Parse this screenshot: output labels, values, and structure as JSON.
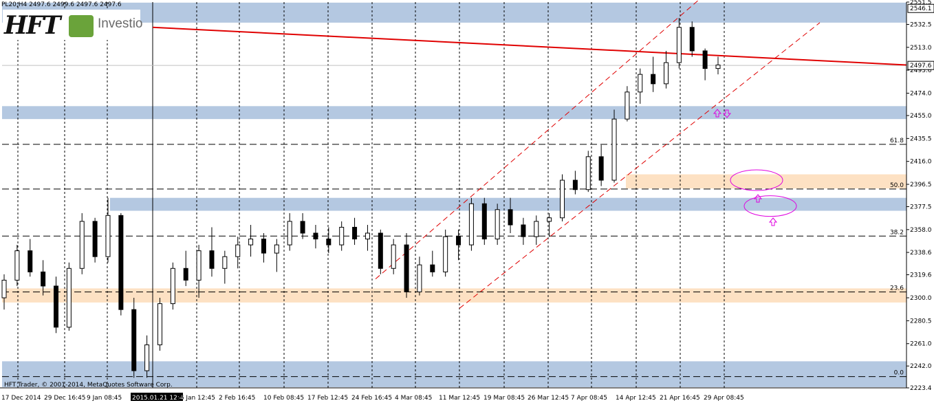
{
  "header": {
    "symbol_info": "PL20,H4  2497.6 2499.6 2497.6 2497.6"
  },
  "logo": {
    "brand": "HFT",
    "suffix": "Investio"
  },
  "footer": {
    "copyright": "HFT Trader, © 2001-2014, MetaQuotes Software Corp."
  },
  "colors": {
    "candle": "#000000",
    "trendline": "#e00000",
    "channel": "#e00000",
    "blue_zone": "#b4c8e1",
    "orange_zone": "#fde1c3",
    "ellipse": "#e000e0",
    "grid": "#000000"
  },
  "chart_data": {
    "type": "candlestick",
    "instrument": "PL20",
    "timeframe": "H4",
    "current_price": 2497.6,
    "top_label": 2546.1,
    "ylim": [
      2223.4,
      2551.5
    ],
    "y_ticks": [
      2551.5,
      2532.5,
      2513.0,
      2493.6,
      2474.0,
      2455.0,
      2435.5,
      2416.0,
      2396.5,
      2377.5,
      2358.0,
      2338.6,
      2319.6,
      2300.0,
      2280.5,
      2261.0,
      2242.0,
      2223.4
    ],
    "x_ticks": [
      "17 Dec 2014",
      "29 Dec 16:45",
      "9 Jan 08:45",
      "2015.01.21 12:45",
      "26 Jan 12:45",
      "2 Feb 16:45",
      "10 Feb 08:45",
      "17 Feb 12:45",
      "24 Feb 16:45",
      "4 Mar 08:45",
      "11 Mar 12:45",
      "19 Mar 08:45",
      "26 Mar 12:45",
      "7 Apr 08:45",
      "14 Apr 12:45",
      "21 Apr 16:45",
      "29 Apr 08:45"
    ],
    "fib_levels": [
      {
        "label": "61.8",
        "price": 2430.5
      },
      {
        "label": "50.0",
        "price": 2392.5
      },
      {
        "label": "38.2",
        "price": 2352.5
      },
      {
        "label": "23.6",
        "price": 2305.0
      },
      {
        "label": "0.0",
        "price": 2233.0
      }
    ],
    "zones": [
      {
        "color": "blue",
        "from": 2534,
        "to": 2551
      },
      {
        "color": "blue",
        "from": 2452,
        "to": 2463
      },
      {
        "color": "orange",
        "from": 2393,
        "to": 2405
      },
      {
        "color": "blue",
        "from": 2374,
        "to": 2385
      },
      {
        "color": "orange",
        "from": 2296,
        "to": 2308
      },
      {
        "color": "blue",
        "from": 2224,
        "to": 2246
      }
    ],
    "trendline": {
      "from": [
        "2015.01.21 12:45",
        2530
      ],
      "to": [
        "end",
        2498
      ]
    },
    "channel_upper": {
      "from": [
        "4 Mar 08:45",
        2316
      ],
      "to": [
        "24 Apr",
        2568
      ]
    },
    "channel_lower": {
      "from": [
        "11 Mar 12:45",
        2291
      ],
      "to": [
        "3 May",
        2534
      ]
    },
    "candles": [
      [
        2300,
        2320,
        2290,
        2315
      ],
      [
        2315,
        2345,
        2310,
        2340
      ],
      [
        2340,
        2350,
        2318,
        2322
      ],
      [
        2322,
        2332,
        2302,
        2310
      ],
      [
        2310,
        2318,
        2270,
        2275
      ],
      [
        2275,
        2330,
        2272,
        2325
      ],
      [
        2325,
        2372,
        2320,
        2365
      ],
      [
        2365,
        2368,
        2330,
        2335
      ],
      [
        2335,
        2385,
        2330,
        2370
      ],
      [
        2370,
        2372,
        2285,
        2290
      ],
      [
        2290,
        2300,
        2232,
        2238
      ],
      [
        2238,
        2268,
        2232,
        2260
      ],
      [
        2260,
        2300,
        2255,
        2295
      ],
      [
        2295,
        2330,
        2290,
        2325
      ],
      [
        2325,
        2340,
        2310,
        2315
      ],
      [
        2315,
        2345,
        2300,
        2340
      ],
      [
        2340,
        2360,
        2318,
        2325
      ],
      [
        2325,
        2340,
        2312,
        2335
      ],
      [
        2335,
        2352,
        2325,
        2345
      ],
      [
        2345,
        2362,
        2335,
        2350
      ],
      [
        2350,
        2355,
        2330,
        2338
      ],
      [
        2338,
        2350,
        2322,
        2345
      ],
      [
        2345,
        2372,
        2340,
        2365
      ],
      [
        2365,
        2372,
        2350,
        2355
      ],
      [
        2355,
        2362,
        2342,
        2350
      ],
      [
        2350,
        2360,
        2338,
        2345
      ],
      [
        2345,
        2365,
        2340,
        2360
      ],
      [
        2360,
        2368,
        2345,
        2350
      ],
      [
        2350,
        2362,
        2340,
        2355
      ],
      [
        2355,
        2358,
        2320,
        2325
      ],
      [
        2325,
        2350,
        2320,
        2345
      ],
      [
        2345,
        2355,
        2300,
        2305
      ],
      [
        2305,
        2335,
        2302,
        2328
      ],
      [
        2328,
        2340,
        2318,
        2322
      ],
      [
        2322,
        2358,
        2318,
        2352
      ],
      [
        2352,
        2358,
        2332,
        2345
      ],
      [
        2345,
        2385,
        2340,
        2380
      ],
      [
        2380,
        2385,
        2345,
        2350
      ],
      [
        2350,
        2380,
        2345,
        2375
      ],
      [
        2375,
        2385,
        2355,
        2362
      ],
      [
        2362,
        2368,
        2345,
        2352
      ],
      [
        2352,
        2370,
        2345,
        2365
      ],
      [
        2365,
        2372,
        2352,
        2368
      ],
      [
        2368,
        2405,
        2365,
        2400
      ],
      [
        2400,
        2408,
        2388,
        2392
      ],
      [
        2392,
        2425,
        2390,
        2420
      ],
      [
        2420,
        2430,
        2395,
        2400
      ],
      [
        2400,
        2460,
        2398,
        2452
      ],
      [
        2452,
        2480,
        2450,
        2475
      ],
      [
        2475,
        2495,
        2465,
        2490
      ],
      [
        2490,
        2505,
        2475,
        2482
      ],
      [
        2482,
        2510,
        2478,
        2500
      ],
      [
        2500,
        2538,
        2495,
        2530
      ],
      [
        2530,
        2535,
        2505,
        2510
      ],
      [
        2510,
        2512,
        2485,
        2495
      ],
      [
        2495,
        2505,
        2490,
        2498
      ]
    ]
  }
}
